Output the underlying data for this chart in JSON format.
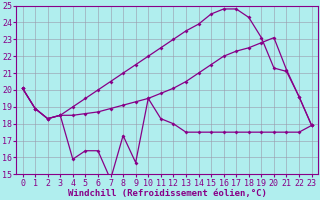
{
  "background_color": "#b0eeee",
  "grid_color": "#9999aa",
  "line_color": "#880088",
  "xlabel": "Windchill (Refroidissement éolien,°C)",
  "xlabel_fontsize": 6.5,
  "tick_fontsize": 6.0,
  "ylim": [
    15,
    25
  ],
  "xlim_min": -0.5,
  "xlim_max": 23.5,
  "yticks": [
    15,
    16,
    17,
    18,
    19,
    20,
    21,
    22,
    23,
    24,
    25
  ],
  "xticks": [
    0,
    1,
    2,
    3,
    4,
    5,
    6,
    7,
    8,
    9,
    10,
    11,
    12,
    13,
    14,
    15,
    16,
    17,
    18,
    19,
    20,
    21,
    22,
    23
  ],
  "x": [
    0,
    1,
    2,
    3,
    4,
    5,
    6,
    7,
    8,
    9,
    10,
    11,
    12,
    13,
    14,
    15,
    16,
    17,
    18,
    19,
    20,
    21,
    22,
    23
  ],
  "y_bottom": [
    20.1,
    18.9,
    18.3,
    18.5,
    15.9,
    16.4,
    16.4,
    14.7,
    17.3,
    15.7,
    19.5,
    18.3,
    18.0,
    17.5,
    17.5,
    17.5,
    17.5,
    17.5,
    17.5,
    17.5,
    17.5,
    17.5,
    17.5,
    17.9
  ],
  "y_middle": [
    20.1,
    18.9,
    18.3,
    18.5,
    18.5,
    18.6,
    18.7,
    18.9,
    19.1,
    19.3,
    19.5,
    19.8,
    20.1,
    20.5,
    21.0,
    21.5,
    22.0,
    22.3,
    22.5,
    22.8,
    23.1,
    21.2,
    19.6,
    17.9
  ],
  "y_top": [
    20.1,
    18.9,
    18.3,
    18.5,
    19.0,
    19.5,
    20.0,
    20.5,
    21.0,
    21.5,
    22.0,
    22.5,
    23.0,
    23.5,
    23.9,
    24.5,
    24.8,
    24.8,
    24.3,
    23.1,
    21.3,
    21.1,
    19.6,
    17.9
  ]
}
